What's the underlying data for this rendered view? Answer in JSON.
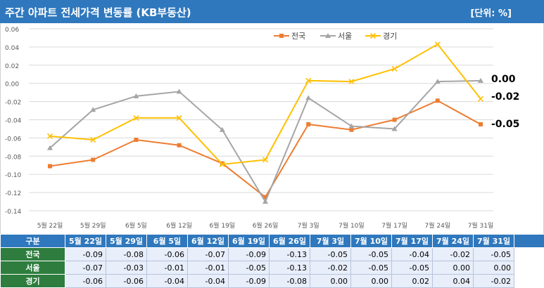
{
  "header": {
    "title": "주간 아파트 전세가격 변동률 (KB부동산)",
    "unit": "[단위: %]"
  },
  "table": {
    "corner": "구분"
  },
  "colors": {
    "header_bg": "#2f78bd",
    "row_head_bg": "#2e7d3e",
    "national": "#ed7d31",
    "seoul": "#a5a5a5",
    "gyeonggi": "#ffc000"
  },
  "chart_data": {
    "type": "line",
    "title": "",
    "xlabel": "",
    "ylabel": "",
    "categories": [
      "5월 22일",
      "5월 29일",
      "6월 5일",
      "6월 12일",
      "6월 19일",
      "6월 26일",
      "7월 3일",
      "7월 10일",
      "7월 17일",
      "7월 24일",
      "7월 31일"
    ],
    "yticks": [
      "0.06",
      "0.04",
      "0.02",
      "0.00",
      "-0.02",
      "-0.04",
      "-0.06",
      "-0.08",
      "-0.10",
      "-0.12",
      "-0.14"
    ],
    "ylim": [
      -0.14,
      0.06
    ],
    "grid": true,
    "legend_position": "top",
    "series": [
      {
        "name": "전국",
        "marker": "square",
        "color": "#ed7d31",
        "values": [
          -0.091,
          -0.084,
          -0.062,
          -0.068,
          -0.088,
          -0.125,
          -0.045,
          -0.051,
          -0.04,
          -0.019,
          -0.045
        ],
        "labels": [
          "-0.09",
          "-0.08",
          "-0.06",
          "-0.07",
          "-0.09",
          "-0.13",
          "-0.05",
          "-0.05",
          "-0.04",
          "-0.02",
          "-0.05"
        ]
      },
      {
        "name": "서울",
        "marker": "triangle",
        "color": "#a5a5a5",
        "values": [
          -0.071,
          -0.029,
          -0.014,
          -0.009,
          -0.051,
          -0.13,
          -0.016,
          -0.047,
          -0.05,
          0.002,
          0.003
        ],
        "labels": [
          "-0.07",
          "-0.03",
          "-0.01",
          "-0.01",
          "-0.05",
          "-0.13",
          "-0.02",
          "-0.05",
          "-0.05",
          "0.00",
          "0.00"
        ]
      },
      {
        "name": "경기",
        "marker": "x",
        "color": "#ffc000",
        "values": [
          -0.058,
          -0.062,
          -0.038,
          -0.038,
          -0.089,
          -0.084,
          0.003,
          0.002,
          0.016,
          0.043,
          -0.017
        ],
        "labels": [
          "-0.06",
          "-0.06",
          "-0.04",
          "-0.04",
          "-0.09",
          "-0.08",
          "0.00",
          "0.00",
          "0.02",
          "0.04",
          "-0.02"
        ]
      }
    ],
    "end_labels": [
      "0.00",
      "-0.02",
      "-0.05"
    ]
  }
}
